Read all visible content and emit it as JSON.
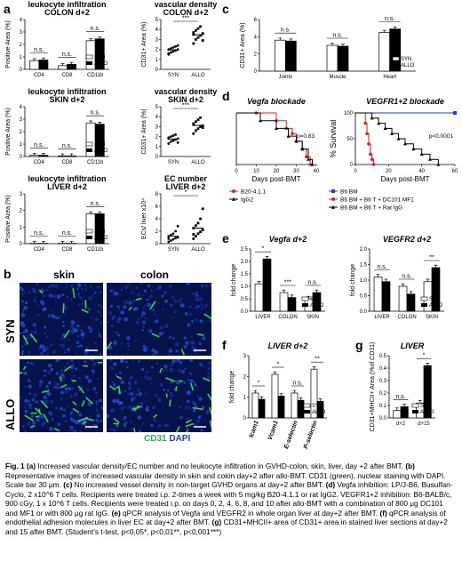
{
  "panels": {
    "a": "a",
    "b": "b",
    "c": "c",
    "d": "d",
    "e": "e",
    "f": "f",
    "g": "g"
  },
  "legend": {
    "syn": "SYN",
    "allo": "ALLO"
  },
  "a_colon": {
    "title1": "leukocyte infiltration",
    "title2": "COLON d+2",
    "ylabel": "Positive Area (%)",
    "categories": [
      "CD4",
      "CD8",
      "CD11b"
    ],
    "yticks": [
      "0",
      "1",
      "2",
      "3",
      "4"
    ],
    "sig": [
      "n.s.",
      "n.s.",
      "n.s."
    ]
  },
  "a_colon_vd": {
    "title1": "vascular density",
    "title2": "COLON d+2",
    "ylabel": "CD31+ Area (%)",
    "categories": [
      "SYN",
      "ALLO"
    ],
    "yticks": [
      "0",
      "1",
      "2",
      "3",
      "4",
      "5"
    ],
    "sig": "***"
  },
  "a_skin": {
    "title1": "leukocyte infiltration",
    "title2": "SKIN d+2",
    "ylabel": "Positive Area (%)",
    "categories": [
      "CD4",
      "CD8",
      "CD11b"
    ],
    "yticks": [
      "0",
      "1",
      "2",
      "3",
      "4"
    ],
    "sig": [
      "n.s.",
      "n.s.",
      "n.s."
    ]
  },
  "a_skin_vd": {
    "title1": "vascular density",
    "title2": "SKIN d+2",
    "ylabel": "CD31+ Area (%)",
    "categories": [
      "SYN",
      "ALLO"
    ],
    "yticks": [
      "0",
      "1",
      "2",
      "3",
      "4",
      "5"
    ],
    "sig": "***"
  },
  "a_liver": {
    "title1": "leukocyte infiltration",
    "title2": "LIVER d+2",
    "ylabel": "Positive Area (%)",
    "categories": [
      "CD4",
      "CD8",
      "CD11b"
    ],
    "yticks": [
      "0",
      "1",
      "2",
      "3"
    ],
    "sig": [
      "n.s.",
      "n.s.",
      "n.s."
    ]
  },
  "a_liver_ec": {
    "title1": "EC number",
    "title2": "LIVER d+2",
    "ylabel": "ECs/ liver x10⁴",
    "categories": [
      "SYN",
      "ALLO"
    ],
    "yticks": [
      "0",
      "2",
      "4",
      "6",
      "8"
    ],
    "sig": "*"
  },
  "b": {
    "col_skin": "skin",
    "col_colon": "colon",
    "row_syn": "SYN",
    "row_allo": "ALLO",
    "stain_cd31": "CD31",
    "stain_dapi": "DAPI"
  },
  "c": {
    "ylabel": "CD31+ Area (%)",
    "categories": [
      "Joints",
      "Muscle",
      "Heart"
    ],
    "yticks": [
      "0",
      "2",
      "4",
      "6"
    ],
    "sig": [
      "n.s.",
      "n.s.",
      "n.s."
    ]
  },
  "d_left": {
    "title": "Vegfa blockade",
    "xlabel": "Days post-BMT",
    "xticks": [
      "0",
      "10",
      "20",
      "30",
      "40"
    ],
    "pval": "p=0.83",
    "legend": [
      "B20-4.1.1",
      "IgG2"
    ]
  },
  "d_right": {
    "title": "VEGFR1+2 blockade",
    "ylabel": "% Survival",
    "xlabel": "Days post-BMT",
    "xticks": [
      "0",
      "20",
      "40",
      "60"
    ],
    "yticks": [
      "0",
      "50",
      "100"
    ],
    "pval": "p<0.0001",
    "legend": [
      "B6 BM",
      "B6 BM + B6 T + DC101 MF1",
      "B6 BM + B6 T + Rat IgG"
    ]
  },
  "e_left": {
    "title": "Vegfa d+2",
    "ylabel": "fold change",
    "categories": [
      "LIVER",
      "COLON",
      "SKIN"
    ],
    "yticks": [
      "0.0",
      "0.5",
      "1.0",
      "1.5",
      "2.0",
      "2.5"
    ],
    "sig": [
      "*",
      "***",
      "n.s."
    ]
  },
  "e_right": {
    "title": "VEGFR2 d+2",
    "ylabel": "fold change",
    "categories": [
      "LIVER",
      "COLON",
      "SKIN"
    ],
    "yticks": [
      "0.0",
      "0.5",
      "1.0",
      "1.5",
      "2.0"
    ],
    "sig": [
      "n.s.",
      "n.s.",
      "**"
    ]
  },
  "f": {
    "title": "LIVER d+2",
    "ylabel": "fold change",
    "categories": [
      "Icam1",
      "Vcam1",
      "E-selectin",
      "P-selectin"
    ],
    "yticks": [
      "0",
      "1",
      "2",
      "3"
    ],
    "sig": [
      "*",
      "*",
      "n.s.",
      "**"
    ]
  },
  "g": {
    "title": "LIVER",
    "ylabel": "CD31+MHCII+ Area (%of CD31)",
    "categories": [
      "d+2",
      "d+15"
    ],
    "yticks": [
      "0.0",
      "0.1",
      "0.2",
      "0.3",
      "0.4",
      "0.5"
    ],
    "sig": [
      "n.s.",
      "*"
    ]
  },
  "caption": {
    "fig": "Fig. 1",
    "a_lbl": "(a)",
    "a": " Increased vascular density/EC number and no leukocyte infiltration in GVHD-colon, skin, liver, day +2 after BMT. ",
    "b_lbl": "(b)",
    "b": " Representative images of increased vascular density in skin and colon day+2 after allo-BMT. CD31 (green), nuclear staining with DAPI. Scale bar 30 μm. ",
    "c_lbl": "(c)",
    "c": " No increased vessel density in non-target GVHD organs at day+2 after BMT. ",
    "d_lbl": "(d)",
    "d": " Vegfa inhibition: LP/J-B6, Busulfan-Cyclo, 2 x10^6 T cells. Recipients were treated i.p. 2-times a week with 5 mg/kg B20-4.1.1 or rat IgG2. VEGFR1+2 inhibition: B6-BALB/c, 900 cGy, 1 x 10^6  T cells. Recipients were treated i.p. on days 0, 2, 4, 6, 8, and 10 after allo-BMT with a combination of 800 μg DC101 and MF1 or with 800 μg rat IgG. ",
    "e_lbl": "(e)",
    "e": " qPCR analysis of Vegfa and VEGFR2 in whole organ liver at day+2 after BMT. ",
    "f_lbl": "(f)",
    "f": " qPCR analysis of endothelial adhesion molecules in liver EC at day+2 after BMT. ",
    "g_lbl": "(g)",
    "g": " CD31+MHCII+ area of CD31+ area in stained liver sections at day+2 and 15 after BMT. (Student’s t-test, p<0,05*, p<0,01**, p<0,001***)"
  },
  "chart_data": [
    {
      "type": "bar",
      "title": "leukocyte infiltration COLON d+2",
      "ylabel": "Positive Area (%)",
      "ylim": [
        0,
        4
      ],
      "categories": [
        "CD4",
        "CD8",
        "CD11b"
      ],
      "series": [
        {
          "name": "SYN",
          "values": [
            0.7,
            0.3,
            2.3
          ]
        },
        {
          "name": "ALLO",
          "values": [
            0.75,
            0.4,
            2.45
          ]
        }
      ]
    },
    {
      "type": "scatter",
      "title": "vascular density COLON d+2",
      "ylabel": "CD31+ Area (%)",
      "ylim": [
        0,
        5
      ],
      "categories": [
        "SYN",
        "ALLO"
      ],
      "series": [
        {
          "name": "SYN",
          "values": [
            1.5,
            1.7,
            1.8,
            1.9,
            2.0,
            2.0,
            2.1,
            2.2,
            2.3,
            2.4,
            1.6
          ]
        },
        {
          "name": "ALLO",
          "values": [
            2.6,
            3.0,
            3.2,
            3.4,
            3.6,
            3.7,
            3.9,
            4.1,
            4.3,
            2.9,
            3.5
          ]
        }
      ]
    },
    {
      "type": "bar",
      "title": "leukocyte infiltration SKIN d+2",
      "ylabel": "Positive Area (%)",
      "ylim": [
        0,
        4
      ],
      "categories": [
        "CD4",
        "CD8",
        "CD11b"
      ],
      "series": [
        {
          "name": "SYN",
          "values": [
            0.1,
            0.05,
            2.7
          ]
        },
        {
          "name": "ALLO",
          "values": [
            0.1,
            0.05,
            2.6
          ]
        }
      ]
    },
    {
      "type": "scatter",
      "title": "vascular density SKIN d+2",
      "ylabel": "CD31+ Area (%)",
      "ylim": [
        0,
        5
      ],
      "categories": [
        "SYN",
        "ALLO"
      ],
      "series": [
        {
          "name": "SYN",
          "values": [
            1.3,
            1.5,
            1.6,
            1.7,
            1.8,
            1.9,
            2.0,
            2.1,
            2.2,
            1.4,
            1.8
          ]
        },
        {
          "name": "ALLO",
          "values": [
            2.3,
            2.6,
            2.8,
            3.0,
            3.1,
            3.3,
            3.5,
            3.7,
            3.9,
            2.9,
            3.2
          ]
        }
      ]
    },
    {
      "type": "bar",
      "title": "leukocyte infiltration LIVER d+2",
      "ylabel": "Positive Area (%)",
      "ylim": [
        0,
        3
      ],
      "categories": [
        "CD4",
        "CD8",
        "CD11b"
      ],
      "series": [
        {
          "name": "SYN",
          "values": [
            0.02,
            0.02,
            1.8
          ]
        },
        {
          "name": "ALLO",
          "values": [
            0.02,
            0.02,
            1.8
          ]
        }
      ]
    },
    {
      "type": "scatter",
      "title": "EC number LIVER d+2",
      "ylabel": "ECs/ liver x10⁴",
      "ylim": [
        0,
        8
      ],
      "categories": [
        "SYN",
        "ALLO"
      ],
      "series": [
        {
          "name": "SYN",
          "values": [
            0.3,
            0.5,
            0.7,
            0.9,
            1.0,
            1.2,
            1.4,
            1.6,
            2.0,
            2.8,
            0.8
          ]
        },
        {
          "name": "ALLO",
          "values": [
            0.8,
            1.2,
            1.6,
            1.9,
            2.2,
            2.5,
            2.9,
            3.3,
            4.0,
            5.6,
            1.5
          ]
        }
      ]
    },
    {
      "type": "bar",
      "ylabel": "CD31+ Area (%)",
      "ylim": [
        0,
        6
      ],
      "categories": [
        "Joints",
        "Muscle",
        "Heart"
      ],
      "series": [
        {
          "name": "SYN",
          "values": [
            3.6,
            3.0,
            4.5
          ]
        },
        {
          "name": "ALLO",
          "values": [
            3.5,
            2.9,
            4.9
          ]
        }
      ]
    },
    {
      "type": "line",
      "title": "Vegfa blockade",
      "xlabel": "Days post-BMT",
      "xlim": [
        0,
        40
      ],
      "ylim": [
        0,
        100
      ],
      "series": [
        {
          "name": "B20-4.1.1",
          "x": [
            0,
            10,
            20,
            25,
            28,
            30,
            33,
            35,
            37
          ],
          "y": [
            100,
            100,
            85,
            70,
            60,
            45,
            30,
            15,
            0
          ]
        },
        {
          "name": "IgG2",
          "x": [
            0,
            12,
            20,
            26,
            30,
            33,
            36,
            38
          ],
          "y": [
            100,
            85,
            70,
            55,
            45,
            30,
            10,
            0
          ]
        }
      ]
    },
    {
      "type": "line",
      "title": "VEGFR1+2 blockade",
      "xlabel": "Days post-BMT",
      "ylabel": "% Survival",
      "xlim": [
        0,
        60
      ],
      "ylim": [
        0,
        100
      ],
      "series": [
        {
          "name": "B6 BM",
          "x": [
            0,
            60
          ],
          "y": [
            100,
            100
          ]
        },
        {
          "name": "B6 BM + B6 T + DC101 MF1",
          "x": [
            0,
            6,
            7,
            8,
            9,
            10,
            11
          ],
          "y": [
            100,
            80,
            60,
            40,
            20,
            10,
            0
          ]
        },
        {
          "name": "B6 BM + B6 T + Rat IgG",
          "x": [
            0,
            10,
            14,
            18,
            22,
            26,
            30,
            35,
            40,
            45,
            50
          ],
          "y": [
            100,
            90,
            80,
            70,
            60,
            50,
            40,
            30,
            20,
            10,
            0
          ]
        }
      ]
    },
    {
      "type": "bar",
      "title": "Vegfa d+2",
      "ylabel": "fold change",
      "ylim": [
        0,
        2.5
      ],
      "categories": [
        "LIVER",
        "COLON",
        "SKIN"
      ],
      "series": [
        {
          "name": "SYN",
          "values": [
            1.1,
            0.75,
            0.5
          ]
        },
        {
          "name": "ALLO",
          "values": [
            2.1,
            0.55,
            0.75
          ]
        }
      ]
    },
    {
      "type": "bar",
      "title": "VEGFR2 d+2",
      "ylabel": "fold change",
      "ylim": [
        0,
        2.0
      ],
      "categories": [
        "LIVER",
        "COLON",
        "SKIN"
      ],
      "series": [
        {
          "name": "SYN",
          "values": [
            1.1,
            0.8,
            0.95
          ]
        },
        {
          "name": "ALLO",
          "values": [
            0.95,
            0.55,
            1.4
          ]
        }
      ]
    },
    {
      "type": "bar",
      "title": "LIVER d+2",
      "ylabel": "fold change",
      "ylim": [
        0,
        3
      ],
      "categories": [
        "Icam1",
        "Vcam1",
        "E-selectin",
        "P-selectin"
      ],
      "series": [
        {
          "name": "SYN",
          "values": [
            1.2,
            2.1,
            1.2,
            2.35
          ]
        },
        {
          "name": "ALLO",
          "values": [
            0.9,
            1.05,
            0.85,
            0.8
          ]
        }
      ]
    },
    {
      "type": "bar",
      "title": "LIVER",
      "ylabel": "CD31+MHCII+ Area (%of CD31)",
      "ylim": [
        0,
        0.5
      ],
      "categories": [
        "d+2",
        "d+15"
      ],
      "series": [
        {
          "name": "SYN",
          "values": [
            0.06,
            0.12
          ]
        },
        {
          "name": "ALLO",
          "values": [
            0.09,
            0.42
          ]
        }
      ]
    }
  ]
}
